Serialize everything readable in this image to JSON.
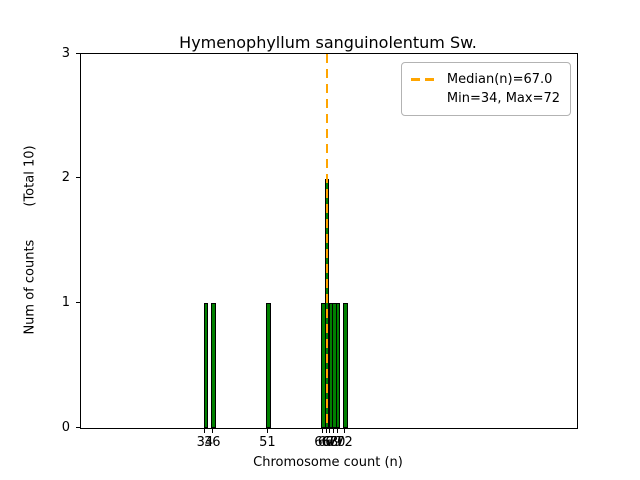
{
  "title": "Hymenophyllum sanguinolentum Sw.",
  "axes": {
    "xlabel": "Chromosome count (n)",
    "ylabel": "Num of counts        (Total 10)"
  },
  "legend": {
    "median_label": "Median(n)=67.0",
    "minmax_label": "Min=34, Max=72"
  },
  "colors": {
    "bar_fill": "#008000",
    "bar_edge": "#000000",
    "median_line": "#FFA500",
    "legend_border": "#b3b3b3",
    "axes_edge": "#000000"
  },
  "chart_data": {
    "type": "bar",
    "title": "Hymenophyllum sanguinolentum Sw.",
    "xlabel": "Chromosome count (n)",
    "ylabel": "Num of counts (Total 10)",
    "x": [
      34,
      36,
      51,
      66,
      67,
      68,
      69,
      70,
      72
    ],
    "values": [
      1,
      1,
      1,
      1,
      2,
      1,
      1,
      1,
      1
    ],
    "xtick_labels": [
      "34",
      "36",
      "51",
      "66",
      "67",
      "68",
      "69",
      "70",
      "72"
    ],
    "yticks": [
      0,
      1,
      2,
      3
    ],
    "ylim": [
      0,
      3
    ],
    "xlim": [
      0,
      135
    ],
    "median": 67.0,
    "min": 34,
    "max": 72,
    "total_counts": 10,
    "grid": false,
    "legend_position": "upper right",
    "annotations": [
      "Median(n)=67.0",
      "Min=34, Max=72"
    ]
  }
}
